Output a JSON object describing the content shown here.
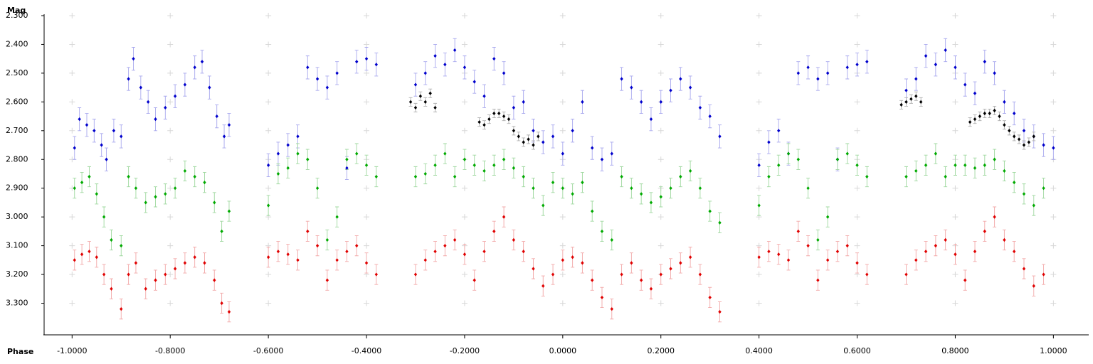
{
  "chart_data": {
    "type": "scatter",
    "x_label": "Phase",
    "y_label": "Mag",
    "y_inverted": true,
    "grid": "plus",
    "xlim": [
      -1.057,
      1.072
    ],
    "ylim": [
      2.3,
      3.41
    ],
    "xticks": [
      {
        "value": -1.0,
        "label": "-1.0000"
      },
      {
        "value": -0.8,
        "label": "-0.8000"
      },
      {
        "value": -0.6,
        "label": "-0.6000"
      },
      {
        "value": -0.4,
        "label": "-0.4000"
      },
      {
        "value": -0.2,
        "label": "-0.2000"
      },
      {
        "value": 0,
        "label": "0.0000"
      },
      {
        "value": 0.2,
        "label": "0.2000"
      },
      {
        "value": 0.4,
        "label": "0.4000"
      },
      {
        "value": 0.6,
        "label": "0.6000"
      },
      {
        "value": 0.8,
        "label": "0.8000"
      },
      {
        "value": 1.0,
        "label": "1.0000"
      }
    ],
    "yticks": [
      {
        "value": 2.3,
        "label": "2.300"
      },
      {
        "value": 2.4,
        "label": "2.400"
      },
      {
        "value": 2.5,
        "label": "2.500"
      },
      {
        "value": 2.6,
        "label": "2.600"
      },
      {
        "value": 2.7,
        "label": "2.700"
      },
      {
        "value": 2.8,
        "label": "2.800"
      },
      {
        "value": 2.9,
        "label": "2.900"
      },
      {
        "value": 3.0,
        "label": "3.000"
      },
      {
        "value": 3.1,
        "label": "3.100"
      },
      {
        "value": 3.2,
        "label": "3.200"
      },
      {
        "value": 3.3,
        "label": "3.300"
      }
    ],
    "series": [
      {
        "color": "#0000cc",
        "error_color": "#a8a8ee",
        "error": 0.04,
        "x": [
          -0.995,
          -0.985,
          -0.97,
          -0.955,
          -0.94,
          -0.93,
          -0.915,
          -0.9,
          -0.885,
          -0.875,
          -0.86,
          -0.845,
          -0.83,
          -0.81,
          -0.79,
          -0.77,
          -0.75,
          -0.735,
          -0.72,
          -0.705,
          -0.69,
          -0.68,
          -0.6,
          -0.58,
          -0.56,
          -0.54,
          -0.52,
          -0.5,
          -0.48,
          -0.46,
          -0.44,
          -0.42,
          -0.4,
          -0.38,
          -0.3,
          -0.28,
          -0.26,
          -0.24,
          -0.22,
          -0.2,
          -0.18,
          -0.16,
          -0.14,
          -0.12,
          -0.1,
          -0.08,
          -0.06,
          -0.04,
          -0.02,
          0,
          0.02,
          0.04,
          0.06,
          0.08,
          0.1,
          0.12,
          0.14,
          0.16,
          0.18,
          0.2,
          0.22,
          0.24,
          0.26,
          0.28,
          0.3,
          0.32,
          0.4,
          0.42,
          0.44,
          0.46,
          0.48,
          0.5,
          0.52,
          0.54,
          0.56,
          0.58,
          0.6,
          0.62,
          0.7,
          0.72,
          0.74,
          0.76,
          0.78,
          0.8,
          0.82,
          0.84,
          0.86,
          0.88,
          0.9,
          0.92,
          0.94,
          0.96,
          0.98,
          1.0
        ],
        "values": [
          2.76,
          2.66,
          2.68,
          2.7,
          2.75,
          2.8,
          2.7,
          2.72,
          2.52,
          2.45,
          2.55,
          2.6,
          2.66,
          2.62,
          2.58,
          2.54,
          2.48,
          2.46,
          2.55,
          2.65,
          2.72,
          2.68,
          2.82,
          2.78,
          2.75,
          2.72,
          2.48,
          2.52,
          2.55,
          2.5,
          2.83,
          2.46,
          2.45,
          2.47,
          2.54,
          2.5,
          2.44,
          2.47,
          2.42,
          2.48,
          2.53,
          2.58,
          2.45,
          2.5,
          2.62,
          2.6,
          2.7,
          2.74,
          2.72,
          2.78,
          2.7,
          2.6,
          2.76,
          2.8,
          2.78,
          2.52,
          2.55,
          2.6,
          2.66,
          2.6,
          2.56,
          2.52,
          2.55,
          2.62,
          2.65,
          2.72,
          2.82,
          2.74,
          2.7,
          2.78,
          2.5,
          2.48,
          2.52,
          2.5,
          2.8,
          2.48,
          2.47,
          2.46,
          2.56,
          2.52,
          2.44,
          2.47,
          2.42,
          2.48,
          2.54,
          2.57,
          2.46,
          2.5,
          2.6,
          2.64,
          2.7,
          2.72,
          2.75,
          2.76
        ]
      },
      {
        "color": "#00aa00",
        "error_color": "#9fd89f",
        "error": 0.035,
        "x": [
          -0.995,
          -0.98,
          -0.965,
          -0.95,
          -0.935,
          -0.92,
          -0.9,
          -0.885,
          -0.87,
          -0.85,
          -0.83,
          -0.81,
          -0.79,
          -0.77,
          -0.75,
          -0.73,
          -0.71,
          -0.695,
          -0.68,
          -0.6,
          -0.58,
          -0.56,
          -0.54,
          -0.52,
          -0.5,
          -0.48,
          -0.46,
          -0.44,
          -0.42,
          -0.4,
          -0.38,
          -0.3,
          -0.28,
          -0.26,
          -0.24,
          -0.22,
          -0.2,
          -0.18,
          -0.16,
          -0.14,
          -0.12,
          -0.1,
          -0.08,
          -0.06,
          -0.04,
          -0.02,
          0,
          0.02,
          0.04,
          0.06,
          0.08,
          0.1,
          0.12,
          0.14,
          0.16,
          0.18,
          0.2,
          0.22,
          0.24,
          0.26,
          0.28,
          0.3,
          0.32,
          0.4,
          0.42,
          0.44,
          0.46,
          0.48,
          0.5,
          0.52,
          0.54,
          0.56,
          0.58,
          0.6,
          0.62,
          0.7,
          0.72,
          0.74,
          0.76,
          0.78,
          0.8,
          0.82,
          0.84,
          0.86,
          0.88,
          0.9,
          0.92,
          0.94,
          0.96,
          0.98
        ],
        "values": [
          2.9,
          2.88,
          2.86,
          2.92,
          3.0,
          3.08,
          3.1,
          2.86,
          2.9,
          2.95,
          2.93,
          2.92,
          2.9,
          2.84,
          2.86,
          2.88,
          2.95,
          3.05,
          2.98,
          2.96,
          2.85,
          2.83,
          2.78,
          2.8,
          2.9,
          3.08,
          3.0,
          2.8,
          2.78,
          2.82,
          2.86,
          2.86,
          2.85,
          2.82,
          2.78,
          2.86,
          2.8,
          2.82,
          2.84,
          2.82,
          2.8,
          2.83,
          2.86,
          2.9,
          2.96,
          2.88,
          2.9,
          2.92,
          2.88,
          2.98,
          3.05,
          3.08,
          2.86,
          2.9,
          2.92,
          2.95,
          2.93,
          2.9,
          2.86,
          2.84,
          2.9,
          2.98,
          3.02,
          2.96,
          2.86,
          2.82,
          2.78,
          2.8,
          2.9,
          3.08,
          3.0,
          2.8,
          2.78,
          2.82,
          2.86,
          2.86,
          2.84,
          2.82,
          2.78,
          2.86,
          2.82,
          2.82,
          2.83,
          2.82,
          2.8,
          2.84,
          2.88,
          2.92,
          2.96,
          2.9
        ]
      },
      {
        "color": "#e00000",
        "error_color": "#f2a8a8",
        "error": 0.035,
        "x": [
          -0.995,
          -0.98,
          -0.965,
          -0.95,
          -0.935,
          -0.92,
          -0.9,
          -0.885,
          -0.87,
          -0.85,
          -0.83,
          -0.81,
          -0.79,
          -0.77,
          -0.75,
          -0.73,
          -0.71,
          -0.695,
          -0.68,
          -0.6,
          -0.58,
          -0.56,
          -0.54,
          -0.52,
          -0.5,
          -0.48,
          -0.46,
          -0.44,
          -0.42,
          -0.4,
          -0.38,
          -0.3,
          -0.28,
          -0.26,
          -0.24,
          -0.22,
          -0.2,
          -0.18,
          -0.16,
          -0.14,
          -0.12,
          -0.1,
          -0.08,
          -0.06,
          -0.04,
          -0.02,
          0,
          0.02,
          0.04,
          0.06,
          0.08,
          0.1,
          0.12,
          0.14,
          0.16,
          0.18,
          0.2,
          0.22,
          0.24,
          0.26,
          0.28,
          0.3,
          0.32,
          0.4,
          0.42,
          0.44,
          0.46,
          0.48,
          0.5,
          0.52,
          0.54,
          0.56,
          0.58,
          0.6,
          0.62,
          0.7,
          0.72,
          0.74,
          0.76,
          0.78,
          0.8,
          0.82,
          0.84,
          0.86,
          0.88,
          0.9,
          0.92,
          0.94,
          0.96,
          0.98
        ],
        "values": [
          3.15,
          3.13,
          3.12,
          3.14,
          3.2,
          3.25,
          3.32,
          3.2,
          3.16,
          3.25,
          3.22,
          3.2,
          3.18,
          3.16,
          3.14,
          3.16,
          3.22,
          3.3,
          3.33,
          3.14,
          3.12,
          3.13,
          3.15,
          3.05,
          3.1,
          3.22,
          3.15,
          3.12,
          3.1,
          3.16,
          3.2,
          3.2,
          3.15,
          3.12,
          3.1,
          3.08,
          3.13,
          3.22,
          3.12,
          3.05,
          3.0,
          3.08,
          3.12,
          3.18,
          3.24,
          3.2,
          3.15,
          3.14,
          3.16,
          3.22,
          3.28,
          3.32,
          3.2,
          3.16,
          3.22,
          3.25,
          3.2,
          3.18,
          3.16,
          3.14,
          3.2,
          3.28,
          3.33,
          3.14,
          3.12,
          3.13,
          3.15,
          3.05,
          3.1,
          3.22,
          3.15,
          3.12,
          3.1,
          3.16,
          3.2,
          3.2,
          3.15,
          3.12,
          3.1,
          3.08,
          3.13,
          3.22,
          3.12,
          3.05,
          3.0,
          3.08,
          3.12,
          3.18,
          3.24,
          3.2
        ]
      },
      {
        "color": "#000000",
        "error_color": "#b0b0b0",
        "error": 0.015,
        "x": [
          -0.31,
          -0.3,
          -0.29,
          -0.28,
          -0.27,
          -0.26,
          -0.17,
          -0.16,
          -0.15,
          -0.14,
          -0.13,
          -0.12,
          -0.11,
          -0.1,
          -0.09,
          -0.08,
          -0.07,
          -0.06,
          -0.05,
          0.69,
          0.7,
          0.71,
          0.72,
          0.73,
          0.83,
          0.84,
          0.85,
          0.86,
          0.87,
          0.88,
          0.89,
          0.9,
          0.91,
          0.92,
          0.93,
          0.94,
          0.95,
          0.96
        ],
        "values": [
          2.6,
          2.62,
          2.58,
          2.6,
          2.57,
          2.62,
          2.67,
          2.68,
          2.66,
          2.64,
          2.64,
          2.65,
          2.66,
          2.7,
          2.72,
          2.74,
          2.73,
          2.75,
          2.72,
          2.61,
          2.6,
          2.59,
          2.58,
          2.6,
          2.67,
          2.66,
          2.65,
          2.64,
          2.64,
          2.63,
          2.65,
          2.68,
          2.7,
          2.72,
          2.73,
          2.75,
          2.74,
          2.72
        ]
      }
    ]
  }
}
